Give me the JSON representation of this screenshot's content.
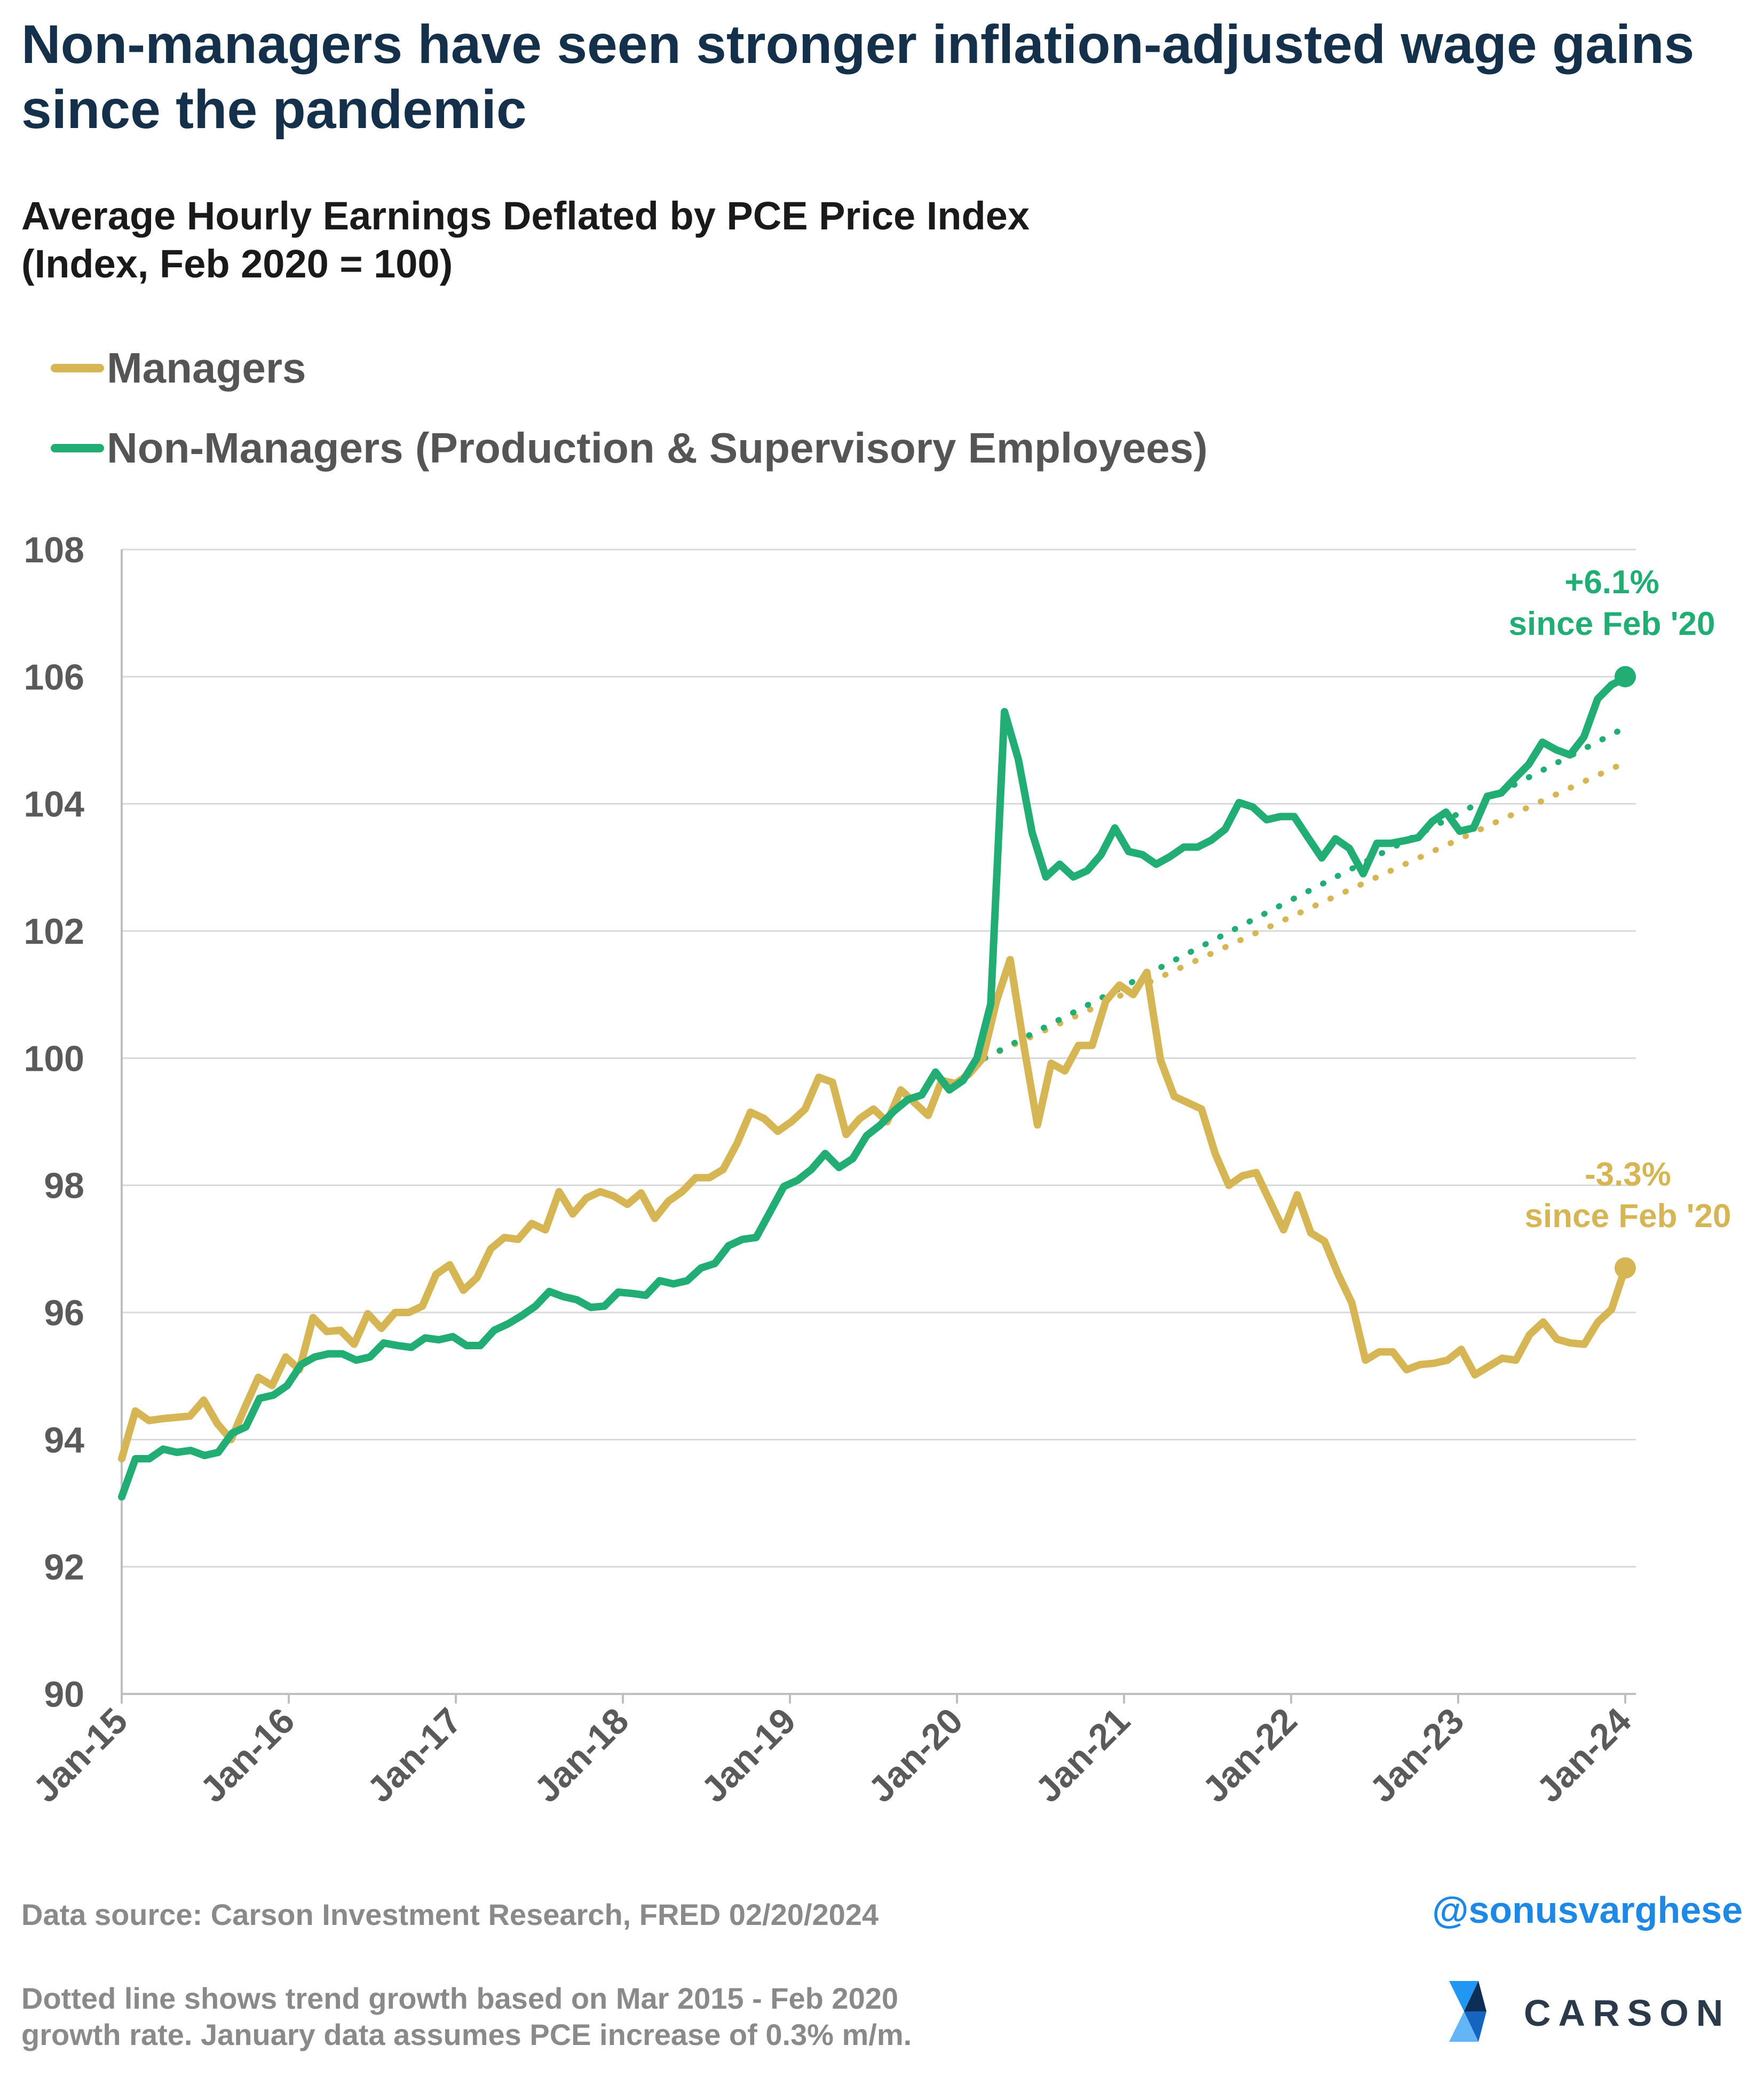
{
  "header": {
    "title": "Non-managers have seen stronger inflation-adjusted wage gains since the pandemic",
    "subtitle_line1": "Average Hourly Earnings Deflated by PCE Price Index",
    "subtitle_line2": "(Index, Feb 2020 = 100)"
  },
  "legend": {
    "managers": "Managers",
    "non_managers": "Non-Managers (Production & Supervisory Employees)"
  },
  "colors": {
    "managers": "#d6b654",
    "non_managers": "#22ad74",
    "grid": "#d9d9d9",
    "axis_text": "#5a5a5a"
  },
  "annotations": {
    "non_managers": {
      "line1": "+6.1%",
      "line2": "since Feb '20"
    },
    "managers": {
      "line1": "-3.3%",
      "line2": "since Feb '20"
    }
  },
  "footer": {
    "source": "Data source: Carson Investment Research, FRED   02/20/2024",
    "note_line1": "Dotted line shows trend growth based on Mar 2015 - Feb 2020",
    "note_line2": "growth rate. January data assumes PCE increase of 0.3% m/m.",
    "handle": "@sonusvarghese",
    "logo_text": "CARSON"
  },
  "chart_data": {
    "type": "line",
    "x_labels": [
      "Jan-15",
      "Jan-16",
      "Jan-17",
      "Jan-18",
      "Jan-19",
      "Jan-20",
      "Jan-21",
      "Jan-22",
      "Jan-23",
      "Jan-24"
    ],
    "x_start": "Jan 2015",
    "x_end": "Jan 2024",
    "ylim": [
      90,
      108
    ],
    "yticks": [
      90,
      92,
      94,
      96,
      98,
      100,
      102,
      104,
      106,
      108
    ],
    "grid": "horizontal",
    "legend_position": "top-left",
    "series": [
      {
        "name": "Managers",
        "color": "#d6b654",
        "values": [
          93.7,
          94.45,
          94.3,
          94.33,
          94.35,
          94.37,
          94.62,
          94.25,
          94.0,
          94.5,
          94.98,
          94.85,
          95.3,
          95.1,
          95.92,
          95.7,
          95.72,
          95.5,
          95.98,
          95.75,
          96.0,
          96.0,
          96.1,
          96.6,
          96.75,
          96.35,
          96.55,
          97.0,
          97.18,
          97.15,
          97.4,
          97.3,
          97.9,
          97.55,
          97.8,
          97.9,
          97.83,
          97.7,
          97.88,
          97.48,
          97.75,
          97.9,
          98.12,
          98.12,
          98.25,
          98.65,
          99.15,
          99.05,
          98.85,
          99.0,
          99.2,
          99.7,
          99.62,
          98.8,
          99.05,
          99.2,
          99.0,
          99.5,
          99.3,
          99.1,
          99.65,
          99.6,
          99.75,
          100.0,
          100.9,
          101.55,
          100.2,
          98.95,
          99.92,
          99.8,
          100.2,
          100.2,
          100.9,
          101.15,
          101.0,
          101.35,
          99.97,
          99.4,
          99.3,
          99.2,
          98.5,
          98.0,
          98.15,
          98.2,
          97.75,
          97.3,
          97.85,
          97.25,
          97.12,
          96.6,
          96.15,
          95.25,
          95.38,
          95.38,
          95.1,
          95.18,
          95.2,
          95.25,
          95.42,
          95.02,
          95.15,
          95.28,
          95.25,
          95.65,
          95.85,
          95.58,
          95.52,
          95.5,
          95.85,
          96.05,
          96.7
        ],
        "end_marker_value": 96.7
      },
      {
        "name": "Non-Managers (Production & Supervisory Employees)",
        "color": "#22ad74",
        "values": [
          93.1,
          93.7,
          93.7,
          93.85,
          93.8,
          93.83,
          93.75,
          93.8,
          94.1,
          94.2,
          94.65,
          94.7,
          94.85,
          95.18,
          95.3,
          95.35,
          95.35,
          95.25,
          95.3,
          95.52,
          95.48,
          95.45,
          95.6,
          95.57,
          95.62,
          95.48,
          95.48,
          95.72,
          95.82,
          95.95,
          96.1,
          96.33,
          96.25,
          96.2,
          96.08,
          96.1,
          96.32,
          96.3,
          96.27,
          96.5,
          96.45,
          96.5,
          96.7,
          96.77,
          97.05,
          97.15,
          97.18,
          97.58,
          97.98,
          98.08,
          98.25,
          98.5,
          98.28,
          98.42,
          98.78,
          98.95,
          99.17,
          99.35,
          99.42,
          99.78,
          99.5,
          99.65,
          100.0,
          100.85,
          105.45,
          104.7,
          103.55,
          102.85,
          103.05,
          102.85,
          102.95,
          103.2,
          103.62,
          103.25,
          103.2,
          103.05,
          103.17,
          103.32,
          103.32,
          103.43,
          103.6,
          104.02,
          103.95,
          103.75,
          103.8,
          103.8,
          103.47,
          103.15,
          103.45,
          103.3,
          102.9,
          103.38,
          103.38,
          103.42,
          103.47,
          103.72,
          103.87,
          103.57,
          103.62,
          104.12,
          104.17,
          104.4,
          104.62,
          104.97,
          104.85,
          104.77,
          105.05,
          105.65,
          105.87,
          105.98
        ],
        "end_marker_value": 106.0
      }
    ],
    "trend_lines": [
      {
        "series": "Managers",
        "style": "dotted",
        "start": "Feb 2020",
        "end": "Jan 2024",
        "start_value": 100.0,
        "end_value": 104.65
      },
      {
        "series": "Non-Managers (Production & Supervisory Employees)",
        "style": "dotted",
        "start": "Feb 2020",
        "end": "Jan 2024",
        "start_value": 100.0,
        "end_value": 105.2
      }
    ]
  }
}
